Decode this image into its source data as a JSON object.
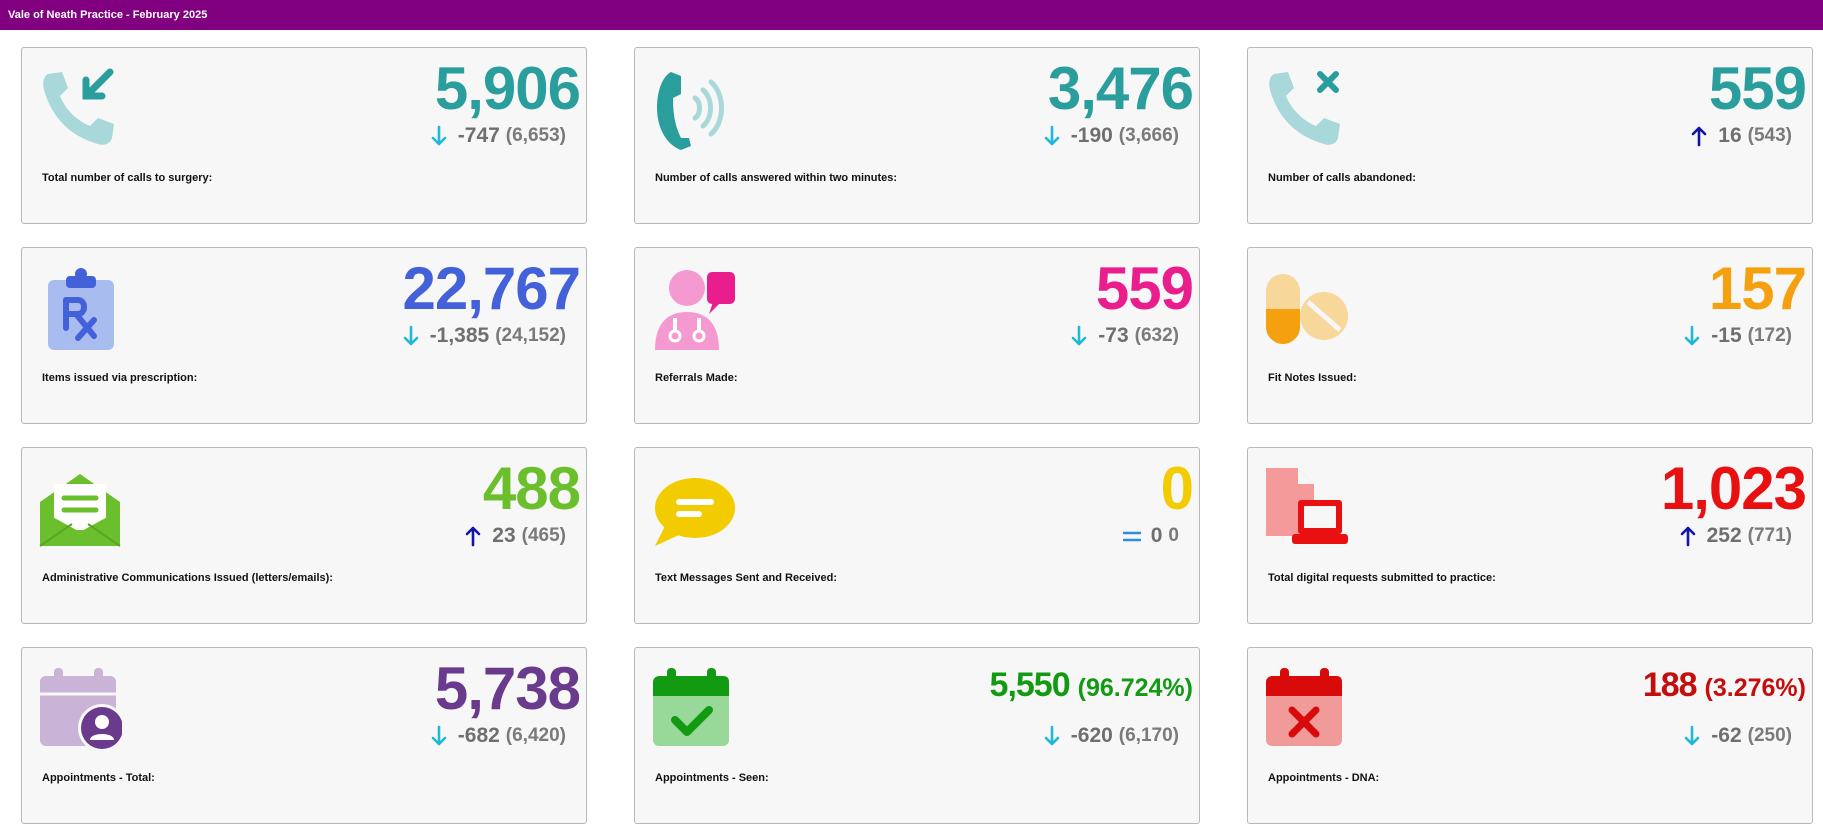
{
  "header": {
    "title": "Vale of Neath Practice - February 2025"
  },
  "cards": [
    {
      "label": "Total number of calls to surgery:",
      "value": "5,906",
      "delta": "-747",
      "prev": "(6,653)",
      "trend": "down",
      "icon": "phone-incoming-icon",
      "color": "#2a9d9d"
    },
    {
      "label": "Number of calls answered within two minutes:",
      "value": "3,476",
      "delta": "-190",
      "prev": "(3,666)",
      "trend": "down",
      "icon": "phone-ringing-icon",
      "color": "#2a9d9d"
    },
    {
      "label": "Number of calls abandoned:",
      "value": "559",
      "delta": "16",
      "prev": "(543)",
      "trend": "up",
      "icon": "phone-missed-icon",
      "color": "#2a9d9d"
    },
    {
      "label": "Items issued via prescription:",
      "value": "22,767",
      "delta": "-1,385",
      "prev": "(24,152)",
      "trend": "down",
      "icon": "prescription-icon",
      "color": "#4361d8"
    },
    {
      "label": "Referrals Made:",
      "value": "559",
      "delta": "-73",
      "prev": "(632)",
      "trend": "down",
      "icon": "doctor-chat-icon",
      "color": "#e91e8c"
    },
    {
      "label": "Fit Notes Issued:",
      "value": "157",
      "delta": "-15",
      "prev": "(172)",
      "trend": "down",
      "icon": "pills-icon",
      "color": "#f5a10f"
    },
    {
      "label": "Administrative Communications Issued (letters/emails):",
      "value": "488",
      "delta": "23",
      "prev": "(465)",
      "trend": "up",
      "icon": "envelope-open-icon",
      "color": "#6cbf2c"
    },
    {
      "label": "Text Messages Sent and Received:",
      "value": "0",
      "delta": "0",
      "prev": "0",
      "trend": "equal",
      "icon": "message-bubble-icon",
      "color": "#f2cc00"
    },
    {
      "label": "Total digital requests submitted to practice:",
      "value": "1,023",
      "delta": "252",
      "prev": "(771)",
      "trend": "up",
      "icon": "laptop-document-icon",
      "color": "#e81010"
    },
    {
      "label": "Appointments - Total:",
      "value": "5,738",
      "delta": "-682",
      "prev": "(6,420)",
      "trend": "down",
      "icon": "calendar-user-icon",
      "color": "#6a3a8c"
    },
    {
      "label": "Appointments - Seen:",
      "value": "5,550",
      "pct": "(96.724%)",
      "delta": "-620",
      "prev": "(6,170)",
      "trend": "down",
      "icon": "calendar-check-icon",
      "color": "#139a13"
    },
    {
      "label": "Appointments - DNA:",
      "value": "188",
      "pct": "(3.276%)",
      "delta": "-62",
      "prev": "(250)",
      "trend": "down",
      "icon": "calendar-x-icon",
      "color": "#c40d0d"
    }
  ],
  "trend_colors": {
    "down": "#1fb8d8",
    "up": "#1313a8",
    "equal": "#2a8ee0"
  }
}
